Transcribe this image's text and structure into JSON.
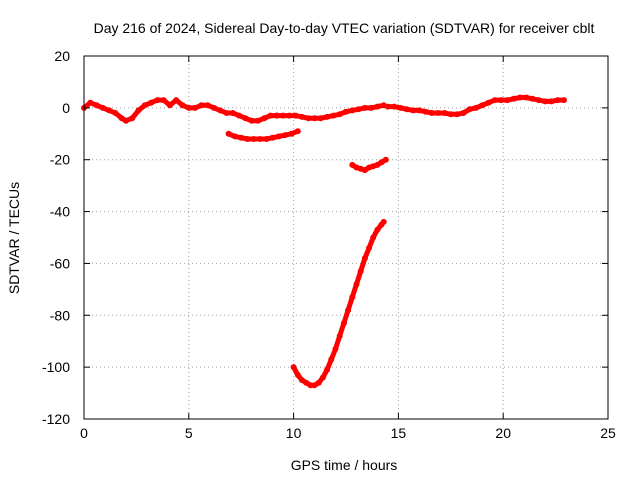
{
  "chart_data": {
    "type": "scatter",
    "title": "Day 216 of 2024, Sidereal Day-to-day VTEC variation (SDTVAR) for receiver cblt",
    "xlabel": "GPS time / hours",
    "ylabel": "SDTVAR / TECUs",
    "xlim": [
      0,
      25
    ],
    "ylim": [
      -120,
      20
    ],
    "xticks": [
      0,
      5,
      10,
      15,
      20,
      25
    ],
    "yticks": [
      -120,
      -100,
      -80,
      -60,
      -40,
      -20,
      0,
      20
    ],
    "grid": true,
    "colors": {
      "series": "#ff0000"
    },
    "series": [
      {
        "x": [
          0.0,
          0.3,
          0.6,
          0.9,
          1.2,
          1.5,
          1.8,
          2.0,
          2.3,
          2.6,
          2.9,
          3.2,
          3.5,
          3.8,
          4.1,
          4.4,
          4.7,
          5.0,
          5.3,
          5.6,
          5.9,
          6.2,
          6.5,
          6.8,
          7.1,
          7.4,
          7.7,
          8.0,
          8.3,
          8.6,
          8.9,
          9.2
        ],
        "y": [
          0,
          2,
          1,
          0,
          -1,
          -2,
          -4,
          -5,
          -4,
          -1,
          1,
          2,
          3,
          3,
          1,
          3,
          1,
          0,
          0,
          1,
          1,
          0,
          -1,
          -2,
          -2,
          -3,
          -4,
          -5,
          -5,
          -4,
          -3,
          -3
        ]
      },
      {
        "x": [
          9.2,
          9.5,
          9.8,
          10.1,
          10.4,
          10.7,
          11.0,
          11.3,
          11.6,
          11.9,
          12.2,
          12.5,
          12.8,
          13.1,
          13.4,
          13.7,
          14.0,
          14.3
        ],
        "y": [
          -3,
          -3,
          -3,
          -3,
          -3.5,
          -4,
          -4,
          -4,
          -3.5,
          -3,
          -2.5,
          -1.5,
          -1,
          -0.5,
          0,
          0,
          0.5,
          1
        ]
      },
      {
        "x": [
          14.5,
          14.8,
          15.1,
          15.4,
          15.7,
          16.0,
          16.3,
          16.6,
          16.9,
          17.2,
          17.5,
          17.8,
          18.1,
          18.4,
          18.7,
          19.0,
          19.3,
          19.6,
          19.9,
          20.2,
          20.5,
          20.8,
          21.1,
          21.4,
          21.7,
          22.0,
          22.3,
          22.6,
          22.9
        ],
        "y": [
          0.5,
          0.5,
          0,
          -0.5,
          -1,
          -1,
          -1.5,
          -2,
          -2,
          -2,
          -2.5,
          -2.5,
          -2,
          -0.5,
          0,
          1,
          2,
          3,
          3,
          3,
          3.5,
          4,
          4,
          3.5,
          3,
          2.5,
          2.5,
          3,
          3
        ]
      },
      {
        "x": [
          6.9,
          7.2,
          7.5,
          7.8,
          8.1,
          8.4,
          8.7,
          9.0,
          9.3,
          9.6,
          9.9,
          10.2
        ],
        "y": [
          -10,
          -11,
          -11.5,
          -12,
          -12,
          -12,
          -12,
          -11.5,
          -11,
          -10.5,
          -10,
          -9
        ]
      },
      {
        "x": [
          12.8,
          13.0,
          13.2,
          13.4,
          13.6,
          13.8,
          14.0,
          14.2,
          14.4
        ],
        "y": [
          -22,
          -23,
          -23.5,
          -24,
          -23,
          -22.5,
          -22,
          -21,
          -20
        ]
      },
      {
        "x": [
          10.0,
          10.2,
          10.4,
          10.6,
          10.8,
          11.0,
          11.2,
          11.4,
          11.6,
          11.8,
          12.0,
          12.2,
          12.4,
          12.6,
          12.8,
          13.0,
          13.2,
          13.4,
          13.6,
          13.8,
          14.0,
          14.2,
          14.3
        ],
        "y": [
          -100,
          -103,
          -105,
          -106,
          -107,
          -107,
          -106,
          -104,
          -101,
          -97,
          -93,
          -88,
          -83,
          -78,
          -73,
          -68,
          -63,
          -58,
          -54,
          -50,
          -47,
          -45,
          -44
        ]
      }
    ]
  }
}
